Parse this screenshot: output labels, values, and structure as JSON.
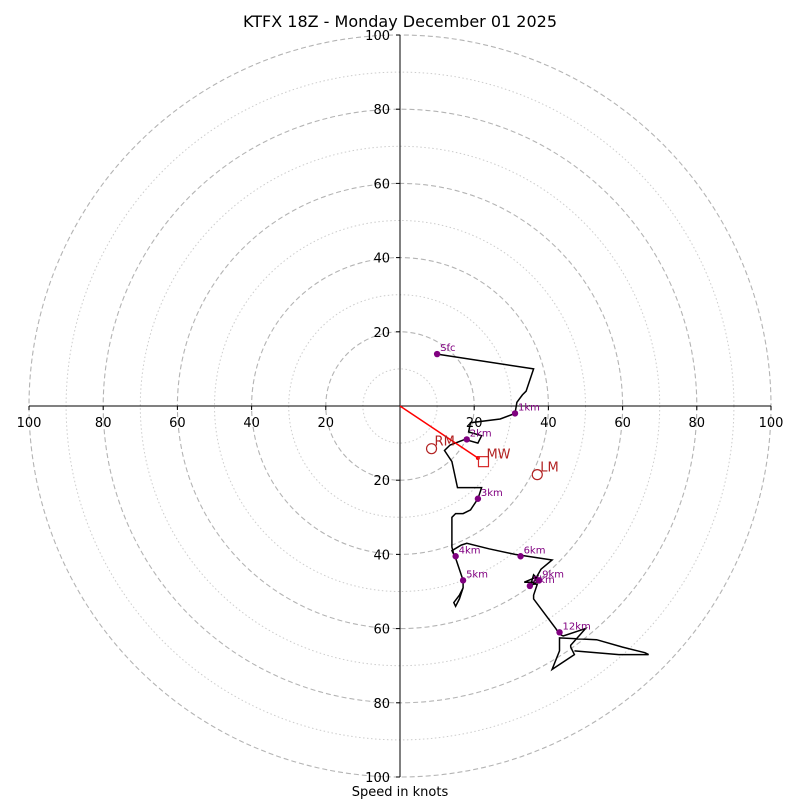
{
  "chart_data": {
    "type": "hodograph",
    "title": "KTFX 18Z - Monday December 01 2025",
    "xlabel": "Speed in knots",
    "range": [
      -100,
      100
    ],
    "x_ticks": [
      "100",
      "80",
      "60",
      "40",
      "20",
      "20",
      "40",
      "60",
      "80",
      "100"
    ],
    "y_ticks": [
      "100",
      "80",
      "60",
      "40",
      "20",
      "20",
      "40",
      "60",
      "80",
      "100"
    ],
    "rings_major": [
      20,
      40,
      60,
      80,
      100
    ],
    "rings_minor": [
      10,
      30,
      50,
      70,
      90
    ],
    "trace": [
      [
        10,
        14
      ],
      [
        36,
        10
      ],
      [
        34,
        4
      ],
      [
        33,
        3
      ],
      [
        31.5,
        1
      ],
      [
        31,
        -2
      ],
      [
        27,
        -3.5
      ],
      [
        19,
        -4.5
      ],
      [
        18.5,
        -7
      ],
      [
        22,
        -8
      ],
      [
        21,
        -10
      ],
      [
        17.5,
        -9
      ],
      [
        13.5,
        -10.5
      ],
      [
        12,
        -12
      ],
      [
        14,
        -15
      ],
      [
        15.5,
        -22
      ],
      [
        22,
        -22
      ],
      [
        21,
        -25
      ],
      [
        19,
        -28
      ],
      [
        17,
        -29
      ],
      [
        15,
        -29
      ],
      [
        14,
        -30
      ],
      [
        14,
        -38
      ],
      [
        14.5,
        -40
      ],
      [
        15,
        -41
      ],
      [
        17,
        -47
      ],
      [
        17,
        -49
      ],
      [
        16,
        -51
      ],
      [
        14.5,
        -53
      ],
      [
        15,
        -54
      ],
      [
        16,
        -52
      ],
      [
        17,
        -49
      ],
      [
        17,
        -47
      ],
      [
        15,
        -41
      ],
      [
        14,
        -39
      ],
      [
        16.5,
        -37.5
      ],
      [
        18,
        -37
      ],
      [
        24,
        -38.5
      ],
      [
        31,
        -40
      ],
      [
        41,
        -41.5
      ],
      [
        38,
        -44
      ],
      [
        36,
        -47.5
      ],
      [
        33.5,
        -47.5
      ],
      [
        37,
        -46
      ],
      [
        35.5,
        -48.5
      ],
      [
        35,
        -49
      ],
      [
        36,
        -45.5
      ],
      [
        37.5,
        -47
      ],
      [
        34.5,
        -49
      ],
      [
        36,
        -48
      ],
      [
        37,
        -48
      ],
      [
        36,
        -51
      ],
      [
        36,
        -52
      ],
      [
        42,
        -60
      ],
      [
        43,
        -61.5
      ],
      [
        44,
        -62
      ],
      [
        50,
        -60
      ],
      [
        46,
        -64.5
      ],
      [
        46,
        -65
      ],
      [
        47,
        -67
      ],
      [
        41,
        -71
      ],
      [
        43,
        -66
      ],
      [
        43,
        -62.5
      ],
      [
        53,
        -63
      ],
      [
        60,
        -65
      ],
      [
        66,
        -66.5
      ],
      [
        67,
        -67
      ],
      [
        59,
        -67
      ],
      [
        47,
        -66
      ]
    ],
    "height_markers": [
      {
        "label": "Sfc",
        "x": 10,
        "y": 14
      },
      {
        "label": "1km",
        "x": 31,
        "y": -2
      },
      {
        "label": "2km",
        "x": 18,
        "y": -9
      },
      {
        "label": "3km",
        "x": 21,
        "y": -25
      },
      {
        "label": "4km",
        "x": 15,
        "y": -40.5
      },
      {
        "label": "5km",
        "x": 17,
        "y": -47
      },
      {
        "label": "6km",
        "x": 32.5,
        "y": -40.5
      },
      {
        "label": "8km",
        "x": 35,
        "y": -48.5
      },
      {
        "label": "9km",
        "x": 37.5,
        "y": -47
      },
      {
        "label": "12km",
        "x": 43,
        "y": -61
      }
    ],
    "storm_motion": {
      "vector": {
        "from": [
          0,
          0
        ],
        "to": [
          21,
          -14
        ]
      },
      "markers": [
        {
          "label": "RM",
          "x": 8.5,
          "y": -11.5,
          "shape": "circle"
        },
        {
          "label": "MW",
          "x": 22.5,
          "y": -15,
          "shape": "square"
        },
        {
          "label": "LM",
          "x": 37,
          "y": -18.5,
          "shape": "circle"
        }
      ]
    }
  }
}
